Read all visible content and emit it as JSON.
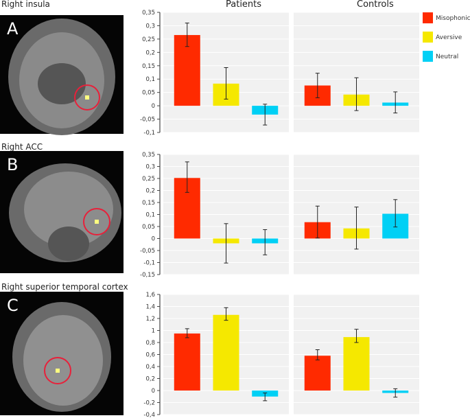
{
  "groups": [
    "Patients",
    "Controls"
  ],
  "legend": [
    {
      "label": "Misophonic",
      "color": "#ff2a00"
    },
    {
      "label": "Aversive",
      "color": "#f5e800"
    },
    {
      "label": "Neutral",
      "color": "#00d0f5"
    }
  ],
  "chart_data": [
    {
      "type": "bar",
      "panel": "A",
      "title": "Right insula",
      "categories": [
        "Misophonic",
        "Aversive",
        "Neutral"
      ],
      "ylim": [
        -0.1,
        0.35
      ],
      "yticks": [
        0.35,
        0.3,
        0.25,
        0.2,
        0.15,
        0.1,
        0.05,
        0,
        -0.05,
        -0.1
      ],
      "ytick_labels": [
        "0,35",
        "0,3",
        "0,25",
        "0,2",
        "0,15",
        "0,1",
        "0,05",
        "0",
        "-0,05",
        "-0,1"
      ],
      "grid": true,
      "legend": "right",
      "series": [
        {
          "group": "Patients",
          "values": [
            0.265,
            0.083,
            -0.033
          ],
          "err_low": [
            0.222,
            0.025,
            -0.072
          ],
          "err_high": [
            0.31,
            0.143,
            0.006
          ]
        },
        {
          "group": "Controls",
          "values": [
            0.076,
            0.042,
            0.012
          ],
          "err_low": [
            0.03,
            -0.018,
            -0.027
          ],
          "err_high": [
            0.122,
            0.105,
            0.052
          ]
        }
      ]
    },
    {
      "type": "bar",
      "panel": "B",
      "title": "Right ACC",
      "categories": [
        "Misophonic",
        "Aversive",
        "Neutral"
      ],
      "ylim": [
        -0.15,
        0.35
      ],
      "yticks": [
        0.35,
        0.3,
        0.25,
        0.2,
        0.15,
        0.1,
        0.05,
        0,
        -0.05,
        -0.1,
        -0.15
      ],
      "ytick_labels": [
        "0,35",
        "0,3",
        "0,25",
        "0,2",
        "0,15",
        "0,1",
        "0,05",
        "0",
        "-0,05",
        "-0,1",
        "-0,15"
      ],
      "grid": true,
      "series": [
        {
          "group": "Patients",
          "values": [
            0.252,
            -0.02,
            -0.02
          ],
          "err_low": [
            0.192,
            -0.102,
            -0.068
          ],
          "err_high": [
            0.319,
            0.062,
            0.037
          ]
        },
        {
          "group": "Controls",
          "values": [
            0.068,
            0.042,
            0.103
          ],
          "err_low": [
            0.002,
            -0.044,
            0.048
          ],
          "err_high": [
            0.135,
            0.131,
            0.162
          ]
        }
      ]
    },
    {
      "type": "bar",
      "panel": "C",
      "title": "Right superior temporal cortex",
      "categories": [
        "Misophonic",
        "Aversive",
        "Neutral"
      ],
      "ylim": [
        -0.4,
        1.6
      ],
      "yticks": [
        1.6,
        1.4,
        1.2,
        1,
        0.8,
        0.6,
        0.4,
        0.2,
        0,
        -0.2,
        -0.4
      ],
      "ytick_labels": [
        "1,6",
        "1,4",
        "1,2",
        "1",
        "0,8",
        "0,6",
        "0,4",
        "0,2",
        "0",
        "-0,2",
        "-0,4"
      ],
      "grid": true,
      "series": [
        {
          "group": "Patients",
          "values": [
            0.95,
            1.26,
            -0.1
          ],
          "err_low": [
            0.88,
            1.17,
            -0.17
          ],
          "err_high": [
            1.03,
            1.38,
            -0.04
          ]
        },
        {
          "group": "Controls",
          "values": [
            0.58,
            0.89,
            -0.04
          ],
          "err_low": [
            0.51,
            0.8,
            -0.11
          ],
          "err_high": [
            0.68,
            1.02,
            0.03
          ]
        }
      ]
    }
  ]
}
